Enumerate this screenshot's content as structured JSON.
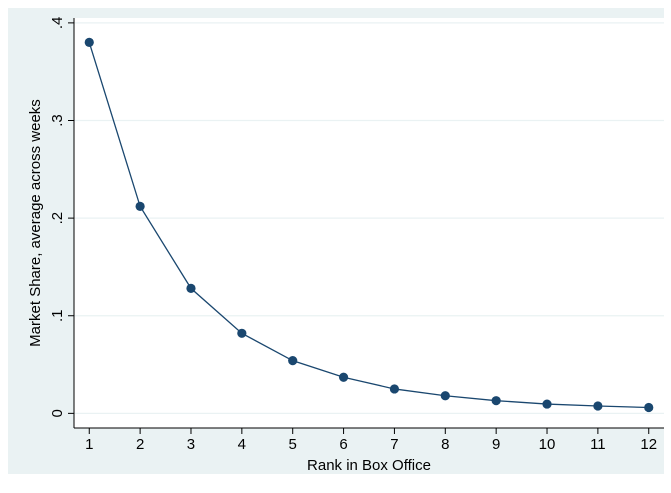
{
  "chart_data": {
    "type": "line",
    "xlabel": "Rank in Box Office",
    "ylabel": "Market Share, average across weeks",
    "xlim": [
      0.7,
      12.3
    ],
    "ylim": [
      -0.015,
      0.405
    ],
    "x_ticks": [
      1,
      2,
      3,
      4,
      5,
      6,
      7,
      8,
      9,
      10,
      11,
      12
    ],
    "x_tick_labels": [
      "1",
      "2",
      "3",
      "4",
      "5",
      "6",
      "7",
      "8",
      "9",
      "10",
      "11",
      "12"
    ],
    "y_ticks": [
      0,
      0.1,
      0.2,
      0.3,
      0.4
    ],
    "y_tick_labels": [
      "0",
      ".1",
      ".2",
      ".3",
      ".4"
    ],
    "grid": true,
    "series": [
      {
        "x": [
          1,
          2,
          3,
          4,
          5,
          6,
          7,
          8,
          9,
          10,
          11,
          12
        ],
        "values": [
          0.38,
          0.212,
          0.128,
          0.082,
          0.054,
          0.037,
          0.025,
          0.018,
          0.013,
          0.0095,
          0.0075,
          0.006
        ]
      }
    ],
    "colors": {
      "line": "#1a476f",
      "marker": "#1a476f",
      "background": "#eaf2f3",
      "plot_area": "#ffffff",
      "grid": "#eaf2f3"
    }
  }
}
